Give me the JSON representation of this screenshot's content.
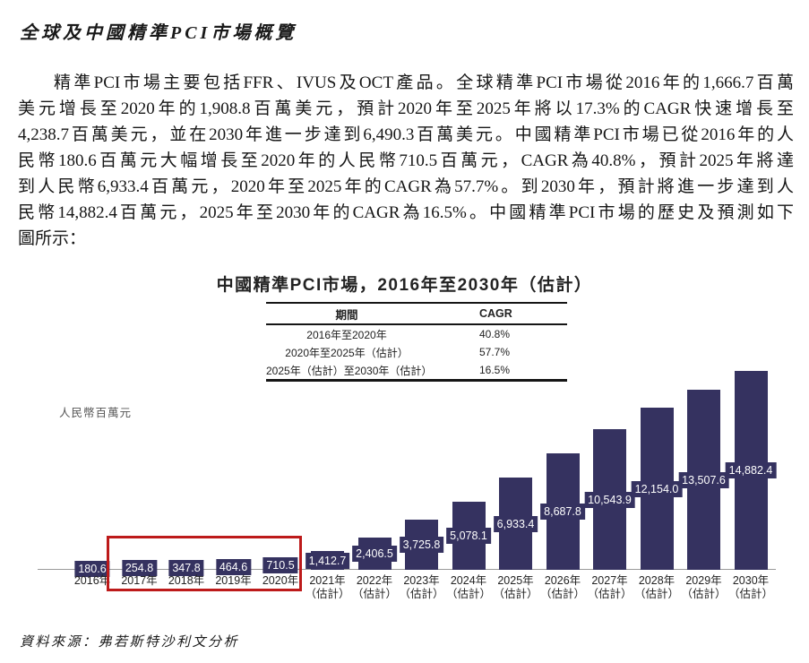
{
  "page": {
    "title": "全球及中國精準PCI市場概覽",
    "source_note": "資料來源：弗若斯特沙利文分析"
  },
  "paragraph": {
    "lines": [
      "精準PCI市場主要包括FFR、IVUS及OCT產品。全球精準PCI市場從2016年的1,666.7百萬",
      "美元增長至2020年的1,908.8百萬美元，預計2020年至2025年將以17.3%的CAGR快速增長至",
      "4,238.7百萬美元，並在2030年進一步達到6,490.3百萬美元。中國精準PCI市場已從2016年的人",
      "民幣180.6百萬元大幅增長至2020年的人民幣710.5百萬元，CAGR為40.8%，預計2025年將達",
      "到人民幣6,933.4百萬元，2020年至2025年的CAGR為57.7%。到2030年，預計將進一步達到人",
      "民幣14,882.4百萬元，2025年至2030年的CAGR為16.5%。中國精準PCI市場的歷史及預測如下",
      "圖所示："
    ]
  },
  "chart": {
    "title_prefix": "中國精準PCI市場，",
    "title_range": "2016年至2030年（估計）",
    "y_axis_title": "人民幣百萬元",
    "bar_color": "#353260",
    "highlight_color": "#bd1a1a"
  },
  "cagr_table": {
    "headers": [
      "期間",
      "CAGR"
    ],
    "rows": [
      {
        "period": "2016年至2020年",
        "cagr": "40.8%"
      },
      {
        "period": "2020年至2025年（估計）",
        "cagr": "57.7%"
      },
      {
        "period": "2025年（估計）至2030年（估計）",
        "cagr": "16.5%"
      }
    ]
  },
  "chart_data": {
    "type": "bar",
    "title": "中國精準PCI市場，2016年至2030年（估計）",
    "ylabel": "人民幣百萬元",
    "categories": [
      "2016年",
      "2017年",
      "2018年",
      "2019年",
      "2020年",
      "2021年（估計）",
      "2022年（估計）",
      "2023年（估計）",
      "2024年（估計）",
      "2025年（估計）",
      "2026年（估計）",
      "2027年（估計）",
      "2028年（估計）",
      "2029年（估計）",
      "2030年（估計）"
    ],
    "values": [
      180.6,
      254.8,
      347.8,
      464.6,
      710.5,
      1412.7,
      2406.5,
      3725.8,
      5078.1,
      6933.4,
      8687.8,
      10543.9,
      12154.0,
      13507.6,
      14882.4
    ],
    "value_labels": [
      "180.6",
      "254.8",
      "347.8",
      "464.6",
      "710.5",
      "1,412.7",
      "2,406.5",
      "3,725.8",
      "5,078.1",
      "6,933.4",
      "8,687.8",
      "10,543.9",
      "12,154.0",
      "13,507.6",
      "14,882.4"
    ],
    "ylim": [
      0,
      14882.4
    ],
    "grid": false,
    "legend": false,
    "highlight_box_years": [
      "2017",
      "2018",
      "2019",
      "2020"
    ]
  }
}
